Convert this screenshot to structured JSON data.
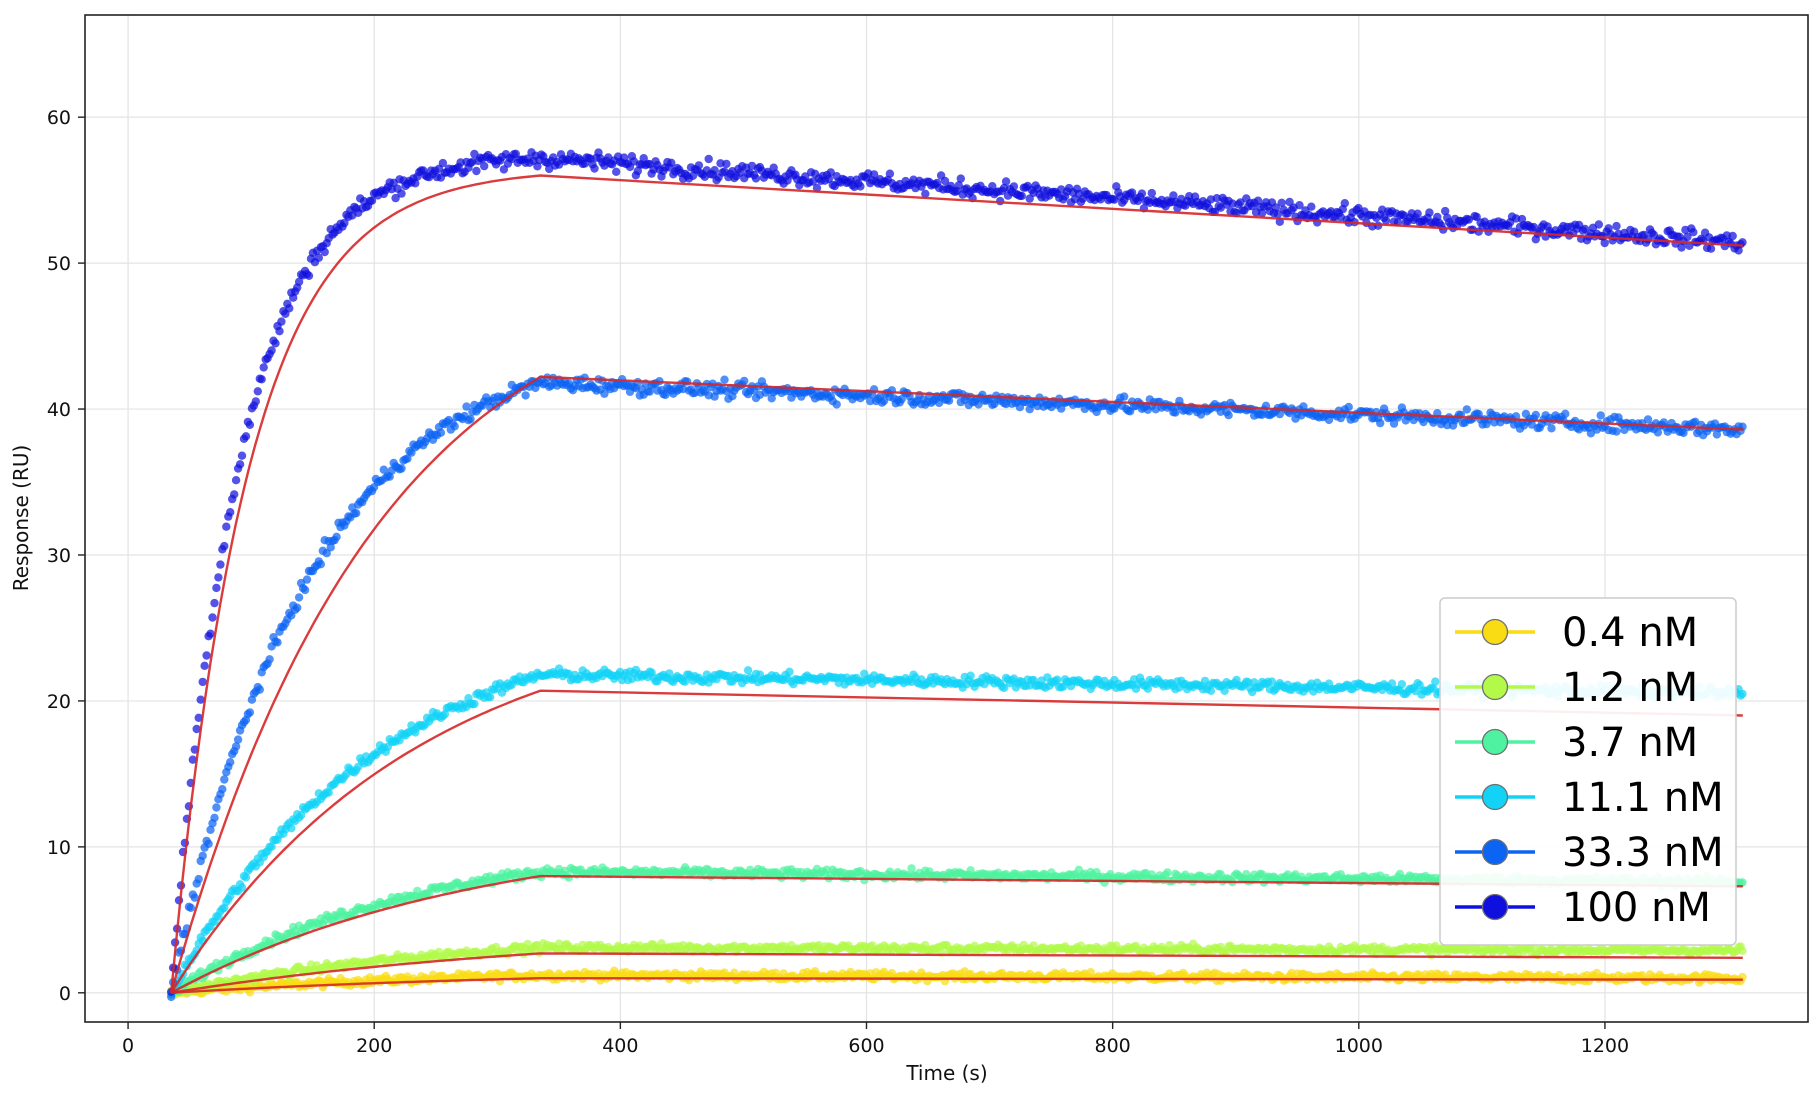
{
  "chart_data": {
    "type": "scatter",
    "title": "",
    "xlabel": "Time (s)",
    "ylabel": "Response (RU)",
    "xlim": [
      -35,
      1365
    ],
    "ylim": [
      -2,
      67
    ],
    "xticks": [
      0,
      200,
      400,
      600,
      800,
      1000,
      1200
    ],
    "yticks": [
      0,
      10,
      20,
      30,
      40,
      50,
      60
    ],
    "grid": true,
    "legend_position": "lower-right",
    "association_start_s": 35,
    "association_end_s": 335,
    "end_s": 1312,
    "fit_color": "#d62728",
    "series": [
      {
        "name": "0.4 nM",
        "color": "#f9dc14",
        "observed_end_assoc": 1.2,
        "observed_end": 1.0,
        "fit_end_assoc": 1.0,
        "fit_end": 0.9
      },
      {
        "name": "1.2 nM",
        "color": "#b2f94a",
        "observed_end_assoc": 3.1,
        "observed_end": 2.9,
        "fit_end_assoc": 2.7,
        "fit_end": 2.4
      },
      {
        "name": "3.7 nM",
        "color": "#4ef2a0",
        "observed_end_assoc": 8.3,
        "observed_end": 7.6,
        "fit_end_assoc": 8.0,
        "fit_end": 7.3
      },
      {
        "name": "11.1 nM",
        "color": "#12d2f6",
        "observed_end_assoc": 21.8,
        "observed_end": 20.5,
        "fit_end_assoc": 20.7,
        "fit_end": 19.0
      },
      {
        "name": "33.3 nM",
        "color": "#0c64f4",
        "observed_end_assoc": 41.8,
        "observed_end": 38.6,
        "fit_end_assoc": 42.2,
        "fit_end": 38.6
      },
      {
        "name": "100 nM",
        "color": "#1010de",
        "observed_end_assoc": 57.2,
        "observed_end": 51.4,
        "fit_end_assoc": 56.0,
        "fit_end": 51.2
      }
    ]
  }
}
